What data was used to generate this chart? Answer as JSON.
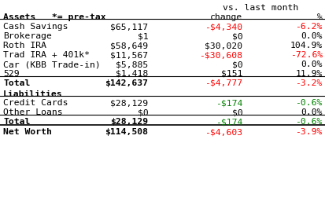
{
  "title_line1": "vs. last month",
  "section1_label": "Assets   *= pre-tax",
  "rows_assets": [
    [
      "Cash Savings",
      "$65,117",
      "-$4,340",
      "-6.2%"
    ],
    [
      "Brokerage",
      "$1",
      "$0",
      "0.0%"
    ],
    [
      "Roth IRA",
      "$58,649",
      "$30,020",
      "104.9%"
    ],
    [
      "Trad IRA + 401k*",
      "$11,567",
      "-$30,608",
      "-72.6%"
    ],
    [
      "Car (KBB Trade-in)",
      "$5,885",
      "$0",
      "0.0%"
    ],
    [
      "529",
      "$1,418",
      "$151",
      "11.9%"
    ]
  ],
  "total_assets": [
    "Total",
    "$142,637",
    "-$4,777",
    "-3.2%"
  ],
  "section2_label": "Liabilities",
  "rows_liabilities": [
    [
      "Credit Cards",
      "$28,129",
      "-$174",
      "-0.6%"
    ],
    [
      "Other Loans",
      "$0",
      "$0",
      "0.0%"
    ]
  ],
  "total_liabilities": [
    "Total",
    "$28,129",
    "-$174",
    "-0.6%"
  ],
  "net_worth": [
    "Net Worth",
    "$114,508",
    "-$4,603",
    "-3.9%"
  ],
  "red_color": "#ff0000",
  "green_color": "#008000",
  "black_color": "#000000",
  "bg_color": "#ffffff",
  "font_size": 8.2
}
